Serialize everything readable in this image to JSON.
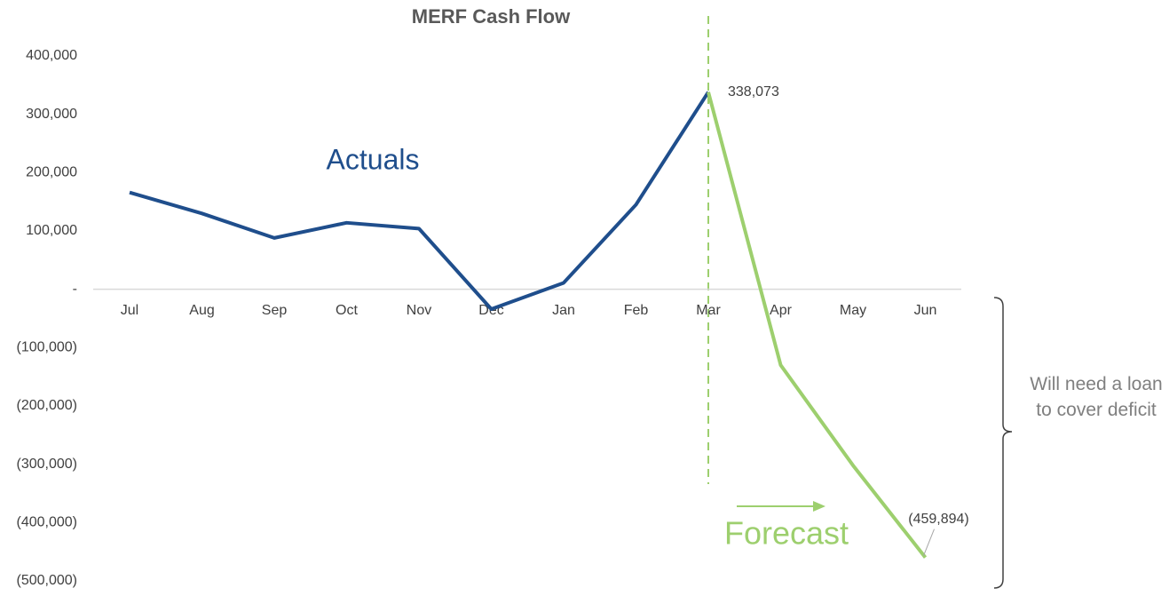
{
  "chart_data": {
    "type": "line",
    "title": "MERF  Cash Flow",
    "categories": [
      "Jul",
      "Aug",
      "Sep",
      "Oct",
      "Nov",
      "Dec",
      "Jan",
      "Feb",
      "Mar",
      "Apr",
      "May",
      "Jun"
    ],
    "series": [
      {
        "name": "Actuals",
        "color": "#1f4e8c",
        "values": [
          166000,
          130000,
          88000,
          114000,
          104000,
          -34000,
          11000,
          145000,
          338073,
          null,
          null,
          null
        ],
        "value_labels": [
          null,
          null,
          null,
          null,
          null,
          null,
          null,
          null,
          "338,073",
          null,
          null,
          null
        ]
      },
      {
        "name": "Forecast",
        "color": "#9dcf6e",
        "values": [
          null,
          null,
          null,
          null,
          null,
          null,
          null,
          null,
          338073,
          -130000,
          -302000,
          -459894
        ],
        "value_labels": [
          null,
          null,
          null,
          null,
          null,
          null,
          null,
          null,
          null,
          null,
          null,
          "(459,894)"
        ]
      }
    ],
    "ylim": [
      -500000,
      400000
    ],
    "yticks": [
      {
        "value": 400000,
        "label": "400,000"
      },
      {
        "value": 300000,
        "label": "300,000"
      },
      {
        "value": 200000,
        "label": "200,000"
      },
      {
        "value": 100000,
        "label": "100,000"
      },
      {
        "value": 0,
        "label": "-"
      },
      {
        "value": -100000,
        "label": "(100,000)"
      },
      {
        "value": -200000,
        "label": "(200,000)"
      },
      {
        "value": -300000,
        "label": "(300,000)"
      },
      {
        "value": -400000,
        "label": "(400,000)"
      },
      {
        "value": -500000,
        "label": "(500,000)"
      }
    ],
    "annotation": "Will need a loan to cover deficit"
  }
}
